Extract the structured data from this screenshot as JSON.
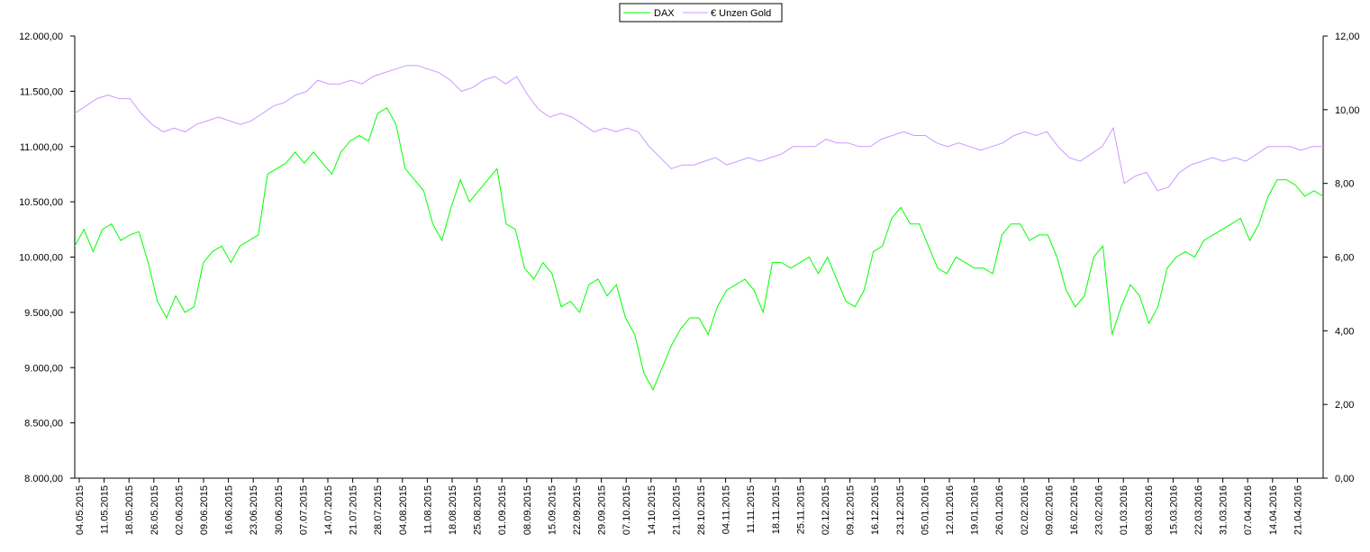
{
  "chart_data": {
    "type": "line",
    "title": "",
    "xlabel": "",
    "ylabel": "",
    "legend_position": "top-center",
    "grid": false,
    "y_left": {
      "range": [
        8000,
        12000
      ],
      "tick_labels": [
        "8.000,00",
        "8.500,00",
        "9.000,00",
        "9.500,00",
        "10.000,00",
        "10.500,00",
        "11.000,00",
        "11.500,00",
        "12.000,00"
      ]
    },
    "y_right": {
      "range": [
        0,
        12
      ],
      "tick_labels": [
        "0,00",
        "2,00",
        "4,00",
        "6,00",
        "8,00",
        "10,00",
        "12,00"
      ]
    },
    "x_tick_labels": [
      "04.05.2015",
      "11.05.2015",
      "18.05.2015",
      "26.05.2015",
      "02.06.2015",
      "09.06.2015",
      "16.06.2015",
      "23.06.2015",
      "30.06.2015",
      "07.07.2015",
      "14.07.2015",
      "21.07.2015",
      "28.07.2015",
      "04.08.2015",
      "11.08.2015",
      "18.08.2015",
      "25.08.2015",
      "01.09.2015",
      "08.09.2015",
      "15.09.2015",
      "22.09.2015",
      "29.09.2015",
      "07.10.2015",
      "14.10.2015",
      "21.10.2015",
      "28.10.2015",
      "04.11.2015",
      "11.11.2015",
      "18.11.2015",
      "25.11.2015",
      "02.12.2015",
      "09.12.2015",
      "16.12.2015",
      "23.12.2015",
      "05.01.2016",
      "12.01.2016",
      "19.01.2016",
      "26.01.2016",
      "02.02.2016",
      "09.02.2016",
      "16.02.2016",
      "23.02.2016",
      "01.03.2016",
      "08.03.2016",
      "15.03.2016",
      "22.03.2016",
      "31.03.2016",
      "07.04.2016",
      "14.04.2016",
      "21.04.2016"
    ],
    "series": [
      {
        "name": "DAX",
        "axis": "left",
        "color": "#00ff00",
        "values": [
          10100,
          10250,
          10050,
          10250,
          10300,
          10150,
          10200,
          10230,
          9950,
          9600,
          9450,
          9650,
          9500,
          9550,
          9950,
          10050,
          10100,
          9950,
          10100,
          10150,
          10200,
          10750,
          10800,
          10850,
          10950,
          10850,
          10950,
          10850,
          10750,
          10950,
          11050,
          11100,
          11050,
          11300,
          11350,
          11200,
          10800,
          10700,
          10600,
          10300,
          10150,
          10450,
          10700,
          10500,
          10600,
          10700,
          10800,
          10300,
          10250,
          9900,
          9800,
          9950,
          9850,
          9550,
          9600,
          9500,
          9750,
          9800,
          9650,
          9750,
          9450,
          9300,
          8950,
          8800,
          9000,
          9200,
          9350,
          9450,
          9450,
          9300,
          9550,
          9700,
          9750,
          9800,
          9700,
          9500,
          9950,
          9950,
          9900,
          9950,
          10000,
          9850,
          10000,
          9800,
          9600,
          9550,
          9700,
          10050,
          10100,
          10350,
          10450,
          10300,
          10300,
          10100,
          9900,
          9850,
          10000,
          9950,
          9900,
          9900,
          9850,
          10200,
          10300,
          10300,
          10150,
          10200,
          10200,
          10000,
          9700,
          9550,
          9650,
          10000,
          10100,
          9300,
          9550,
          9750,
          9650,
          9400,
          9550,
          9900,
          10000,
          10050,
          10000,
          10150,
          10200,
          10250,
          10300,
          10350,
          10150,
          10300,
          10550,
          10700,
          10700,
          10650,
          10550,
          10600,
          10550
        ]
      },
      {
        "name": "€ Unzen Gold",
        "axis": "right",
        "color": "#cc99ff",
        "values": [
          9.9,
          10.1,
          10.3,
          10.4,
          10.3,
          10.3,
          9.9,
          9.6,
          9.4,
          9.5,
          9.4,
          9.6,
          9.7,
          9.8,
          9.7,
          9.6,
          9.7,
          9.9,
          10.1,
          10.2,
          10.4,
          10.5,
          10.8,
          10.7,
          10.7,
          10.8,
          10.7,
          10.9,
          11.0,
          11.1,
          11.2,
          11.2,
          11.1,
          11.0,
          10.8,
          10.5,
          10.6,
          10.8,
          10.9,
          10.7,
          10.9,
          10.4,
          10.0,
          9.8,
          9.9,
          9.8,
          9.6,
          9.4,
          9.5,
          9.4,
          9.5,
          9.4,
          9.0,
          8.7,
          8.4,
          8.5,
          8.5,
          8.6,
          8.7,
          8.5,
          8.6,
          8.7,
          8.6,
          8.7,
          8.8,
          9.0,
          9.0,
          9.0,
          9.2,
          9.1,
          9.1,
          9.0,
          9.0,
          9.2,
          9.3,
          9.4,
          9.3,
          9.3,
          9.1,
          9.0,
          9.1,
          9.0,
          8.9,
          9.0,
          9.1,
          9.3,
          9.4,
          9.3,
          9.4,
          9.0,
          8.7,
          8.6,
          8.8,
          9.0,
          9.5,
          8.0,
          8.2,
          8.3,
          7.8,
          7.9,
          8.3,
          8.5,
          8.6,
          8.7,
          8.6,
          8.7,
          8.6,
          8.8,
          9.0,
          9.0,
          9.0,
          8.9,
          9.0,
          9.0
        ]
      }
    ]
  }
}
